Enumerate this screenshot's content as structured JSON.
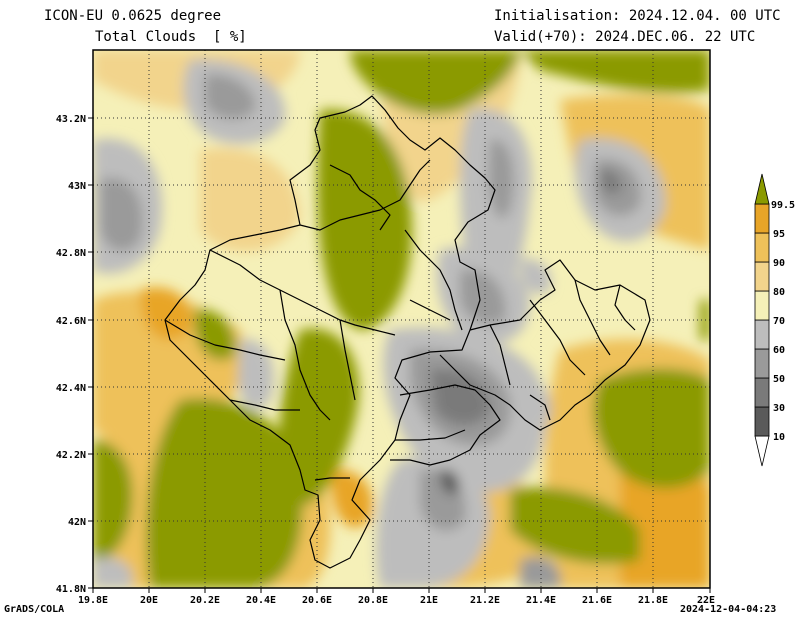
{
  "header": {
    "model": "ICON-EU 0.0625 degree",
    "parameter": "Total Clouds  [ %]",
    "initialisation": "Initialisation: 2024.12.04. 00 UTC",
    "valid": "Valid(+70): 2024.DEC.06. 22 UTC"
  },
  "footer": {
    "credit": "GrADS/COLA",
    "timestamp": "2024-12-04-04:23"
  },
  "map": {
    "lon_range": [
      19.8,
      22.0
    ],
    "lat_range": [
      41.8,
      43.4
    ],
    "x_ticks": [
      "19.8E",
      "20E",
      "20.2E",
      "20.4E",
      "20.6E",
      "20.8E",
      "21E",
      "21.2E",
      "21.4E",
      "21.6E",
      "21.8E",
      "22E"
    ],
    "y_ticks": [
      "41.8N",
      "42N",
      "42.2N",
      "42.4N",
      "42.6N",
      "42.8N",
      "43N",
      "43.2N"
    ],
    "grid": "dotted"
  },
  "legend": {
    "levels": [
      "10",
      "30",
      "50",
      "60",
      "70",
      "80",
      "90",
      "95",
      "99.5"
    ],
    "colors": [
      "#ffffff",
      "#5a5a5a",
      "#7a7a7a",
      "#9a9a9a",
      "#bdbdbd",
      "#f5f0b8",
      "#f2d48c",
      "#eec15a",
      "#e8a528",
      "#8b9a00"
    ]
  }
}
